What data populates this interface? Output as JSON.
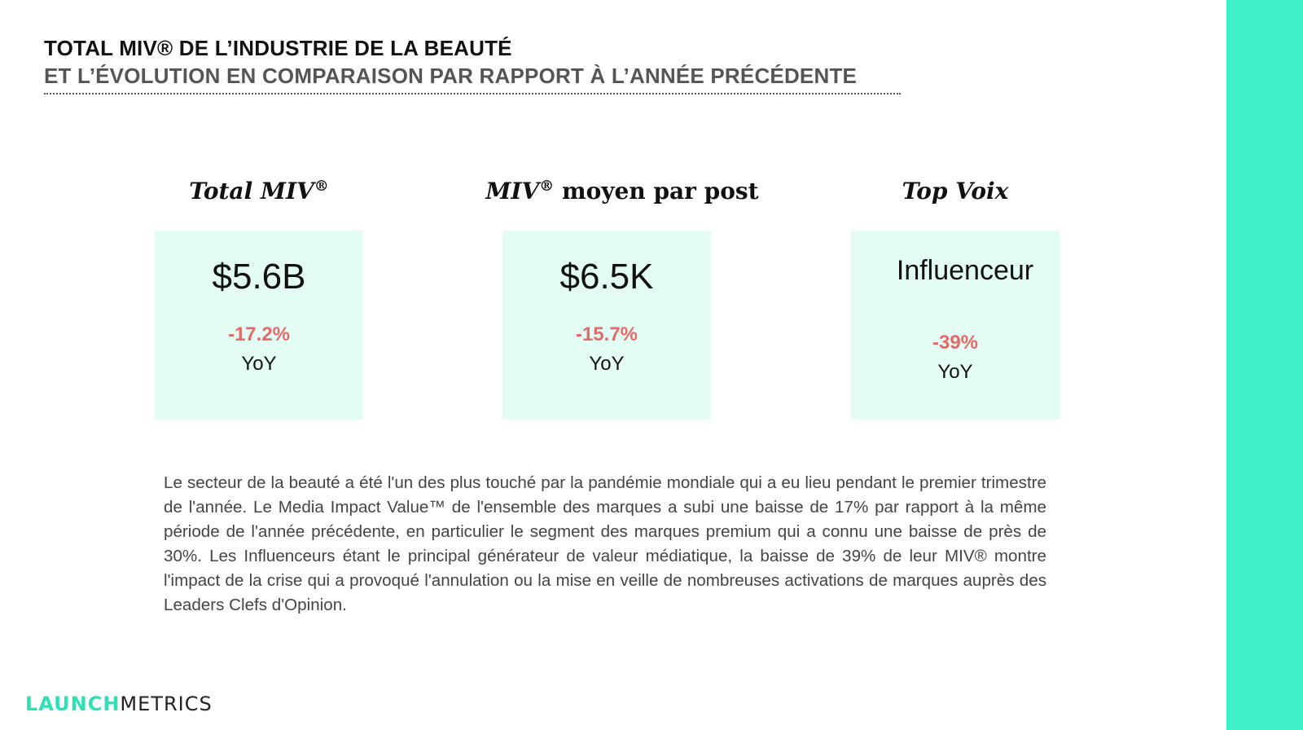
{
  "header": {
    "title_line1": "TOTAL MIV® DE L’INDUSTRIE DE LA BEAUTÉ",
    "title_line2": "ET L’ÉVOLUTION EN COMPARAISON PAR RAPPORT À L’ANNÉE PRÉCÉDENTE"
  },
  "kpis": [
    {
      "heading": "Total MIV",
      "heading_mark": "®",
      "value": "$5.6B",
      "change": "-17.2%",
      "period": "YoY"
    },
    {
      "heading_mark": "®",
      "heading_suffix": " moyen par post",
      "heading_prefix": "MIV",
      "value": "$6.5K",
      "change": "-15.7%",
      "period": "YoY"
    },
    {
      "heading": "Top Voix",
      "value": "Influenceur",
      "change": "-39%",
      "period": "YoY"
    }
  ],
  "paragraph": "Le secteur de la beauté a été l'un des plus touché par la pandémie mondiale qui a eu lieu pendant le premier trimestre de l'année. Le Media Impact Value™ de l'ensemble des marques a subi une baisse de 17% par rapport à la même période de l'année précédente, en particulier le segment des marques premium qui a connu une baisse de près de 30%. Les Influenceurs étant le principal générateur de valeur médiatique, la baisse de 39% de leur MIV® montre l'impact de la crise qui a provoqué l'annulation ou la mise en veille de nombreuses activations de marques auprès des Leaders Clefs d'Opinion.",
  "logo": {
    "part1": "LAUNCH",
    "part2": "METRICS"
  },
  "colors": {
    "accent": "#3ff1c8",
    "box_background": "#e3fcf4",
    "negative_change": "#e46a6a",
    "title_secondary": "#555555"
  }
}
